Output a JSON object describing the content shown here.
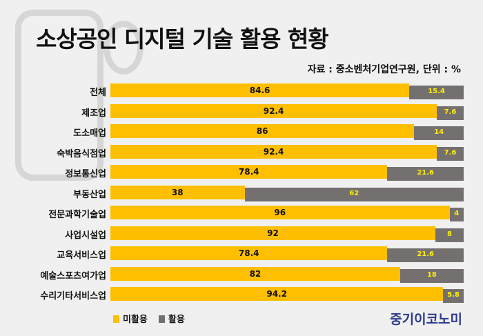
{
  "title": "소상공인 디지털 기술 활용 현황",
  "source": "자료 : 중소벤처기업연구원, 단위 : %",
  "brand": "중기이코노미",
  "colors": {
    "unused": "#fdbf00",
    "used": "#757070",
    "used_label": "#fdf000"
  },
  "chart_data": {
    "type": "bar",
    "stacked": true,
    "orientation": "horizontal",
    "title": "소상공인 디지털 기술 활용 현황",
    "unit": "%",
    "categories": [
      "전체",
      "제조업",
      "도소매업",
      "숙박음식점업",
      "정보통신업",
      "부동산업",
      "전문과학기술업",
      "사업시설업",
      "교육서비스업",
      "예술스포츠여가업",
      "수리기타서비스업"
    ],
    "series": [
      {
        "name": "미활용",
        "values": [
          84.6,
          92.4,
          86,
          92.4,
          78.4,
          38,
          96,
          92,
          78.4,
          82,
          94.2
        ]
      },
      {
        "name": "활용",
        "values": [
          15.4,
          7.6,
          14,
          7.6,
          21.6,
          62,
          4,
          8,
          21.6,
          18,
          5.8
        ]
      }
    ],
    "labels": {
      "미활용": [
        "84.6",
        "92.4",
        "86",
        "92.4",
        "78.4",
        "38",
        "96",
        "92",
        "78.4",
        "82",
        "94.2"
      ],
      "활용": [
        "15.4",
        "7.6",
        "14",
        "7.6",
        "21.6",
        "62",
        "4",
        "8",
        "21.6",
        "18",
        "5.8"
      ]
    },
    "xlim": [
      0,
      100
    ],
    "legend": "bottom-left"
  }
}
